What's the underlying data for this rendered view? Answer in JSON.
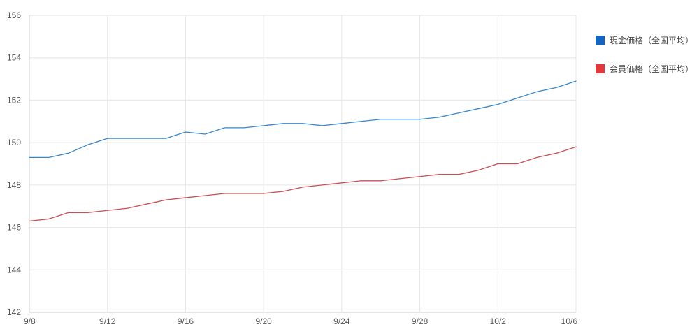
{
  "chart_data": {
    "type": "line",
    "title": "",
    "xlabel": "",
    "ylabel": "",
    "ylim": [
      142,
      156
    ],
    "y_ticks": [
      "142",
      "144",
      "146",
      "148",
      "150",
      "152",
      "154",
      "156"
    ],
    "x_ticks": [
      "9/8",
      "9/12",
      "9/16",
      "9/20",
      "9/24",
      "9/28",
      "10/2",
      "10/6"
    ],
    "categories": [
      "9/8",
      "9/9",
      "9/10",
      "9/11",
      "9/12",
      "9/13",
      "9/14",
      "9/15",
      "9/16",
      "9/17",
      "9/18",
      "9/19",
      "9/20",
      "9/21",
      "9/22",
      "9/23",
      "9/24",
      "9/25",
      "9/26",
      "9/27",
      "9/28",
      "9/29",
      "9/30",
      "10/1",
      "10/2",
      "10/3",
      "10/4",
      "10/5",
      "10/6"
    ],
    "grid": true,
    "legend_position": "right",
    "series": [
      {
        "name": "現金価格（全国平均）",
        "color": "#3a86c8",
        "legend_color": "#1565c0",
        "values": [
          149.3,
          149.3,
          149.5,
          149.9,
          150.2,
          150.2,
          150.2,
          150.2,
          150.5,
          150.4,
          150.7,
          150.7,
          150.8,
          150.9,
          150.9,
          150.8,
          150.9,
          151.0,
          151.1,
          151.1,
          151.1,
          151.2,
          151.4,
          151.6,
          151.8,
          152.1,
          152.4,
          152.6,
          152.9
        ]
      },
      {
        "name": "会員価格（全国平均）",
        "color": "#c94f57",
        "legend_color": "#e0393e",
        "values": [
          146.3,
          146.4,
          146.7,
          146.7,
          146.8,
          146.9,
          147.1,
          147.3,
          147.4,
          147.5,
          147.6,
          147.6,
          147.6,
          147.7,
          147.9,
          148.0,
          148.1,
          148.2,
          148.2,
          148.3,
          148.4,
          148.5,
          148.5,
          148.7,
          149.0,
          149.0,
          149.3,
          149.5,
          149.8
        ]
      }
    ]
  }
}
